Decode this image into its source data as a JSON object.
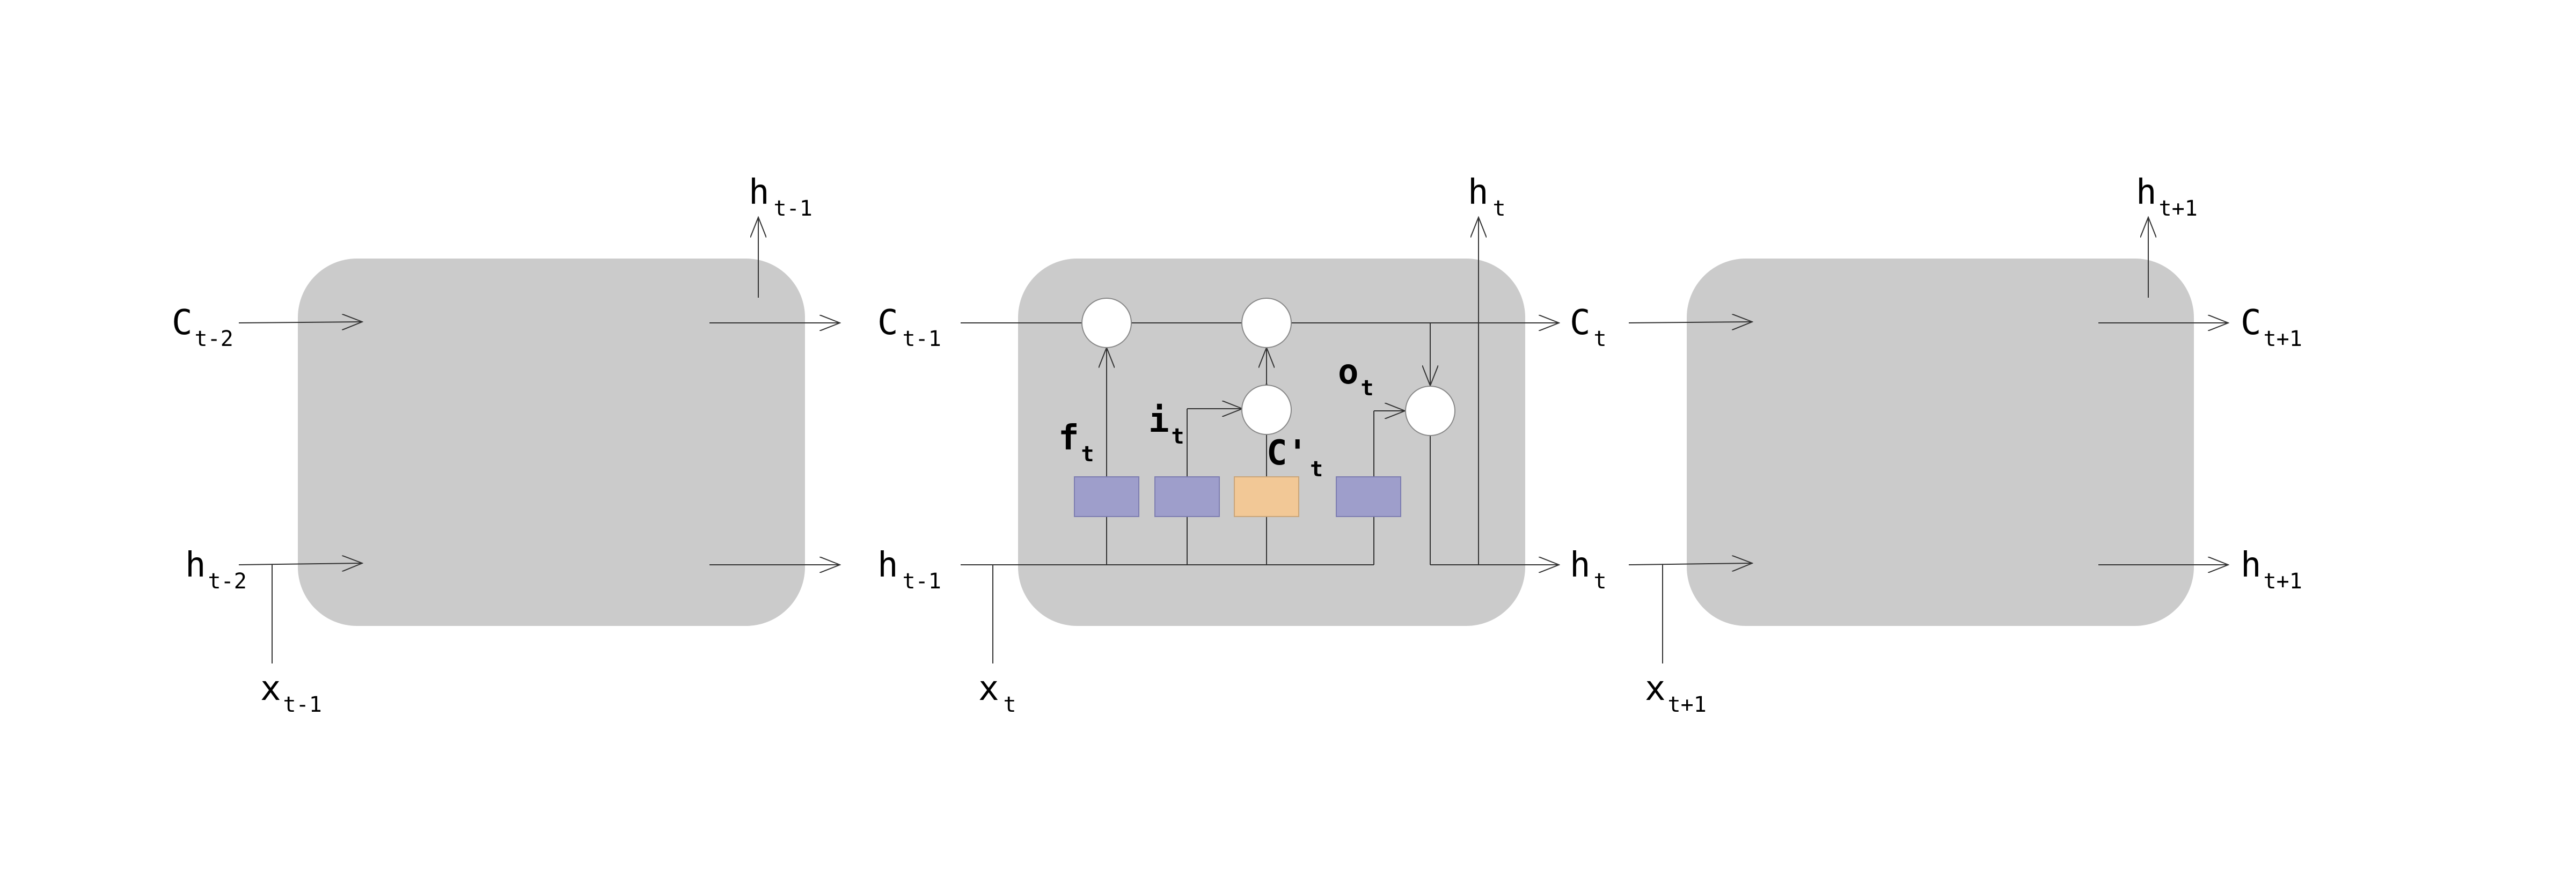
{
  "colors": {
    "cell_fill": "#cbcbcb",
    "sigmoid_gate_fill": "#9e9ecb",
    "candidate_fill": "#f2c896",
    "operator_fill": "#ffffff",
    "line": "#333333"
  },
  "labels": {
    "left_c_in": {
      "main": "C",
      "sub": "t-2"
    },
    "left_h_in": {
      "main": "h",
      "sub": "t-2"
    },
    "left_x_in": {
      "main": "x",
      "sub": "t-1"
    },
    "left_h_out": {
      "main": "h",
      "sub": "t-1"
    },
    "mid_c_in": {
      "main": "C",
      "sub": "t-1"
    },
    "mid_h_in": {
      "main": "h",
      "sub": "t-1"
    },
    "mid_x_in": {
      "main": "x",
      "sub": "t"
    },
    "mid_h_out": {
      "main": "h",
      "sub": "t"
    },
    "mid_c_out": {
      "main": "C",
      "sub": "t"
    },
    "mid_h_right": {
      "main": "h",
      "sub": "t"
    },
    "right_h_out": {
      "main": "h",
      "sub": "t+1"
    },
    "right_c_out": {
      "main": "C",
      "sub": "t+1"
    },
    "right_h_right": {
      "main": "h",
      "sub": "t+1"
    },
    "right_x_in": {
      "main": "x",
      "sub": "t+1"
    },
    "forget_gate": {
      "main": "f",
      "sub": "t"
    },
    "input_gate": {
      "main": "i",
      "sub": "t"
    },
    "candidate": {
      "main": "C'",
      "sub": "t"
    },
    "output_gate": {
      "main": "o",
      "sub": "t"
    }
  }
}
